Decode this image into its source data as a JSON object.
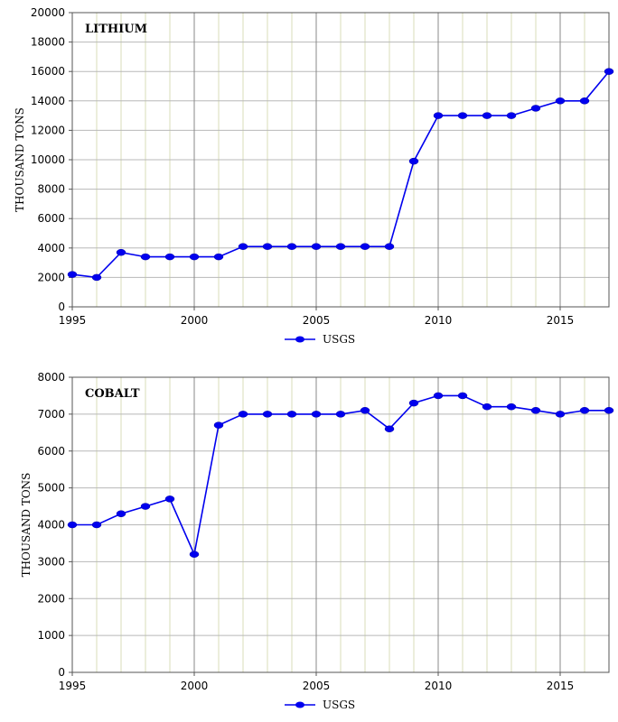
{
  "chart_data": [
    {
      "type": "line",
      "title": "LITHIUM",
      "xlabel": "",
      "ylabel": "THOUSAND TONS",
      "xlim": [
        1995,
        2017
      ],
      "ylim": [
        0,
        20000
      ],
      "yticks": [
        0,
        2000,
        4000,
        6000,
        8000,
        10000,
        12000,
        14000,
        16000,
        18000,
        20000
      ],
      "xticks": [
        1995,
        2000,
        2005,
        2010,
        2015
      ],
      "grid": true,
      "legend_position": "bottom-center",
      "line_color": "#cc2222",
      "marker_color": "#0000ee",
      "series": [
        {
          "name": "USGS",
          "x": [
            1995,
            1996,
            1997,
            1998,
            1999,
            2000,
            2001,
            2002,
            2003,
            2004,
            2005,
            2006,
            2007,
            2008,
            2009,
            2010,
            2011,
            2012,
            2013,
            2014,
            2015,
            2016,
            2017
          ],
          "values": [
            2200,
            2000,
            3700,
            3400,
            3400,
            3400,
            3400,
            4100,
            4100,
            4100,
            4100,
            4100,
            4100,
            4100,
            9900,
            13000,
            13000,
            13000,
            13000,
            13500,
            14000,
            14000,
            16000
          ]
        }
      ]
    },
    {
      "type": "line",
      "title": "COBALT",
      "xlabel": "",
      "ylabel": "THOUSAND TONS",
      "xlim": [
        1995,
        2017
      ],
      "ylim": [
        0,
        8000
      ],
      "yticks": [
        0,
        1000,
        2000,
        3000,
        4000,
        5000,
        6000,
        7000,
        8000
      ],
      "xticks": [
        1995,
        2000,
        2005,
        2010,
        2015
      ],
      "grid": true,
      "legend_position": "bottom-center",
      "line_color": "#cc2222",
      "marker_color": "#0000ee",
      "series": [
        {
          "name": "USGS",
          "x": [
            1995,
            1996,
            1997,
            1998,
            1999,
            2000,
            2001,
            2002,
            2003,
            2004,
            2005,
            2006,
            2007,
            2008,
            2009,
            2010,
            2011,
            2012,
            2013,
            2014,
            2015,
            2016,
            2017
          ],
          "values": [
            4000,
            4000,
            4300,
            4500,
            4700,
            3200,
            6700,
            7000,
            7000,
            7000,
            7000,
            7000,
            7100,
            6600,
            7300,
            7500,
            7500,
            7200,
            7200,
            7100,
            7000,
            7100,
            7100
          ]
        }
      ]
    }
  ]
}
